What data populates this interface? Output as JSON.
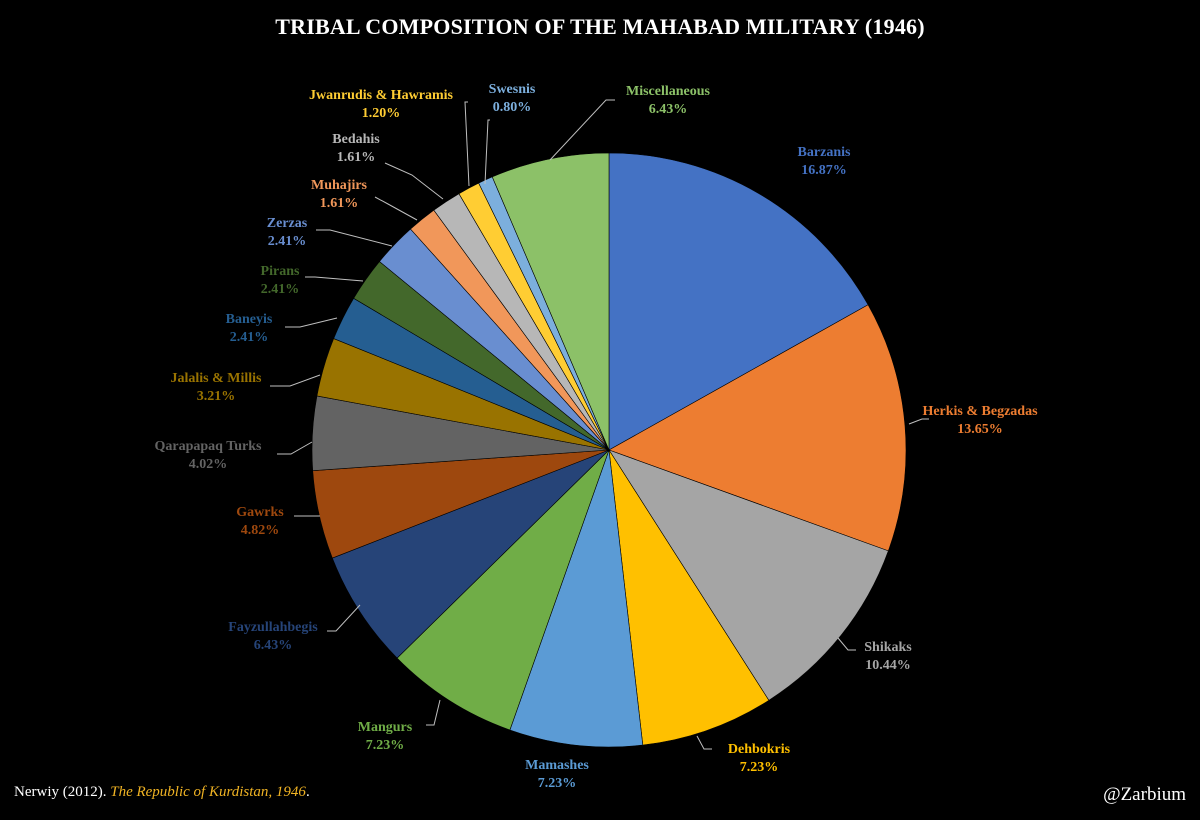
{
  "chart_data": {
    "type": "pie",
    "title": "TRIBAL COMPOSITION OF THE MAHABAD MILITARY (1946)",
    "slices": [
      {
        "name": "Barzanis",
        "value": 16.87,
        "label": "16.87%",
        "color": "#4472C4"
      },
      {
        "name": "Herkis & Begzadas",
        "value": 13.65,
        "label": "13.65%",
        "color": "#ED7D31"
      },
      {
        "name": "Shikaks",
        "value": 10.44,
        "label": "10.44%",
        "color": "#A5A5A5"
      },
      {
        "name": "Dehbokris",
        "value": 7.23,
        "label": "7.23%",
        "color": "#FFC000"
      },
      {
        "name": "Mamashes",
        "value": 7.23,
        "label": "7.23%",
        "color": "#5B9BD5"
      },
      {
        "name": "Mangurs",
        "value": 7.23,
        "label": "7.23%",
        "color": "#70AD47"
      },
      {
        "name": "Fayzullahbegis",
        "value": 6.43,
        "label": "6.43%",
        "color": "#264478"
      },
      {
        "name": "Gawrks",
        "value": 4.82,
        "label": "4.82%",
        "color": "#9E480E"
      },
      {
        "name": "Qarapapaq Turks",
        "value": 4.02,
        "label": "4.02%",
        "color": "#636363"
      },
      {
        "name": "Jalalis & Millis",
        "value": 3.21,
        "label": "3.21%",
        "color": "#997300"
      },
      {
        "name": "Baneyis",
        "value": 2.41,
        "label": "2.41%",
        "color": "#255E91"
      },
      {
        "name": "Pirans",
        "value": 2.41,
        "label": "2.41%",
        "color": "#43682B"
      },
      {
        "name": "Zerzas",
        "value": 2.41,
        "label": "2.41%",
        "color": "#698ED0"
      },
      {
        "name": "Muhajirs",
        "value": 1.61,
        "label": "1.61%",
        "color": "#F1975A"
      },
      {
        "name": "Bedahis",
        "value": 1.61,
        "label": "1.61%",
        "color": "#B7B7B7"
      },
      {
        "name": "Jwanrudis & Hawramis",
        "value": 1.2,
        "label": "1.20%",
        "color": "#FFCD33"
      },
      {
        "name": "Swesnis",
        "value": 0.8,
        "label": "0.80%",
        "color": "#7CAFDD"
      },
      {
        "name": "Miscellaneous",
        "value": 6.43,
        "label": "6.43%",
        "color": "#8CC168"
      }
    ]
  },
  "source": {
    "prefix": "Nerwiy (2012). ",
    "title": "The Republic of Kurdistan, 1946",
    "suffix": "."
  },
  "credit": "@Zarbium"
}
